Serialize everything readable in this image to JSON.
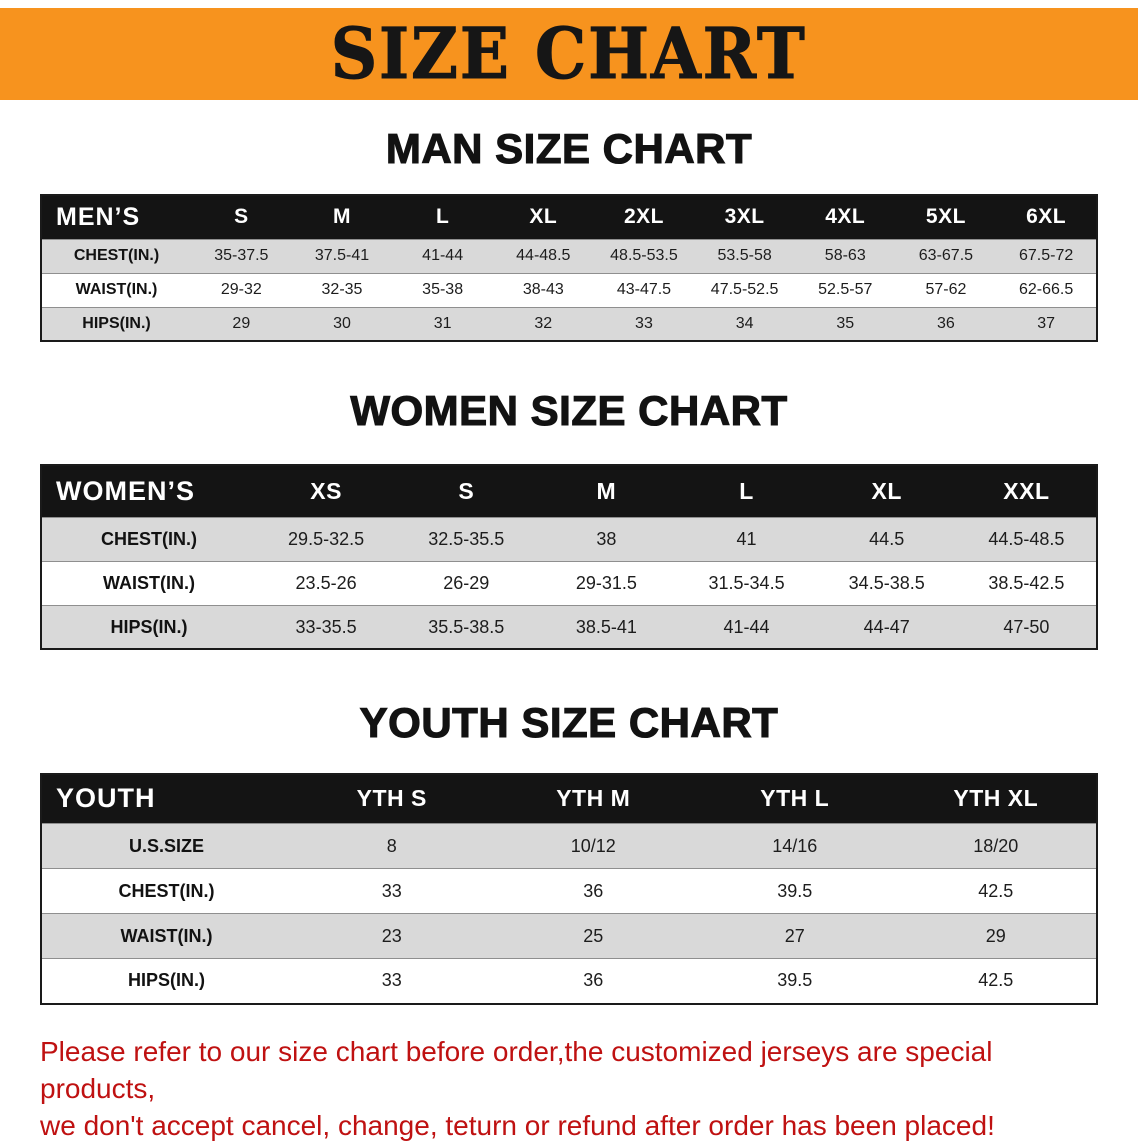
{
  "banner": {
    "title": "SIZE CHART"
  },
  "colors": {
    "accent_orange": "#f7931e",
    "header_black": "#141414",
    "row_gray": "#d9d9d9",
    "footer_red": "#bf1111"
  },
  "sections": [
    {
      "id": "men",
      "heading": "MAN SIZE CHART",
      "table": {
        "header_label": "MEN’S",
        "columns": [
          "S",
          "M",
          "L",
          "XL",
          "2XL",
          "3XL",
          "4XL",
          "5XL",
          "6XL"
        ],
        "rows": [
          {
            "label": "CHEST(IN.)",
            "values": [
              "35-37.5",
              "37.5-41",
              "41-44",
              "44-48.5",
              "48.5-53.5",
              "53.5-58",
              "58-63",
              "63-67.5",
              "67.5-72"
            ]
          },
          {
            "label": "WAIST(IN.)",
            "values": [
              "29-32",
              "32-35",
              "35-38",
              "38-43",
              "43-47.5",
              "47.5-52.5",
              "52.5-57",
              "57-62",
              "62-66.5"
            ]
          },
          {
            "label": "HIPS(IN.)",
            "values": [
              "29",
              "30",
              "31",
              "32",
              "33",
              "34",
              "35",
              "36",
              "37"
            ]
          }
        ]
      }
    },
    {
      "id": "women",
      "heading": "WOMEN SIZE CHART",
      "table": {
        "header_label": "WOMEN’S",
        "columns": [
          "XS",
          "S",
          "M",
          "L",
          "XL",
          "XXL"
        ],
        "rows": [
          {
            "label": "CHEST(IN.)",
            "values": [
              "29.5-32.5",
              "32.5-35.5",
              "38",
              "41",
              "44.5",
              "44.5-48.5"
            ]
          },
          {
            "label": "WAIST(IN.)",
            "values": [
              "23.5-26",
              "26-29",
              "29-31.5",
              "31.5-34.5",
              "34.5-38.5",
              "38.5-42.5"
            ]
          },
          {
            "label": "HIPS(IN.)",
            "values": [
              "33-35.5",
              "35.5-38.5",
              "38.5-41",
              "41-44",
              "44-47",
              "47-50"
            ]
          }
        ]
      }
    },
    {
      "id": "youth",
      "heading": "YOUTH SIZE CHART",
      "table": {
        "header_label": "YOUTH",
        "columns": [
          "YTH S",
          "YTH M",
          "YTH L",
          "YTH XL"
        ],
        "rows": [
          {
            "label": "U.S.SIZE",
            "values": [
              "8",
              "10/12",
              "14/16",
              "18/20"
            ]
          },
          {
            "label": "CHEST(IN.)",
            "values": [
              "33",
              "36",
              "39.5",
              "42.5"
            ]
          },
          {
            "label": "WAIST(IN.)",
            "values": [
              "23",
              "25",
              "27",
              "29"
            ]
          },
          {
            "label": "HIPS(IN.)",
            "values": [
              "33",
              "36",
              "39.5",
              "42.5"
            ]
          }
        ]
      }
    }
  ],
  "footer": {
    "lines": [
      "Please refer to our size chart before order,the customized jerseys are special products,",
      "we don't accept cancel, change, teturn or refund after order has been placed!"
    ]
  }
}
